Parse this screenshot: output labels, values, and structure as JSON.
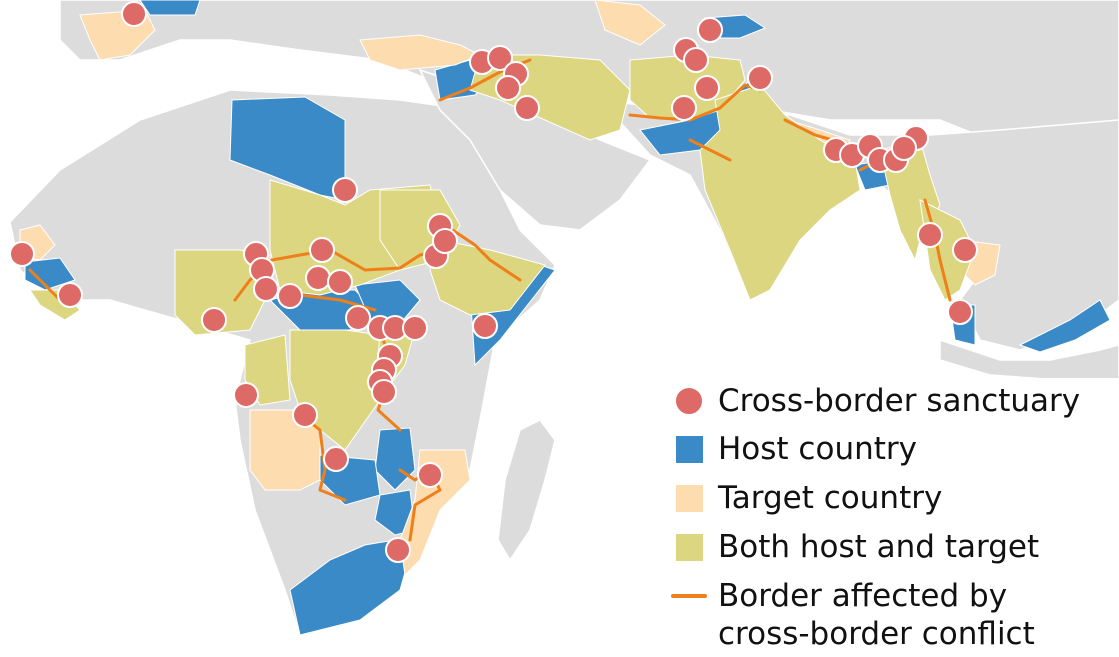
{
  "colors": {
    "ocean": "#ffffff",
    "land": "#dcdcdc",
    "land_border": "#ffffff",
    "host": "#3a8ac8",
    "target": "#fddcb0",
    "both": "#dbd67f",
    "affected_border": "#ef7f1a",
    "sanctuary_fill": "#dd6a67",
    "sanctuary_stroke": "#ffffff"
  },
  "legend": {
    "sanctuary": "Cross-border sanctuary",
    "host": "Host country",
    "target": "Target country",
    "both": "Both host and target",
    "border_line1": "Border affected by",
    "border_line2": "cross-border conflict"
  }
}
